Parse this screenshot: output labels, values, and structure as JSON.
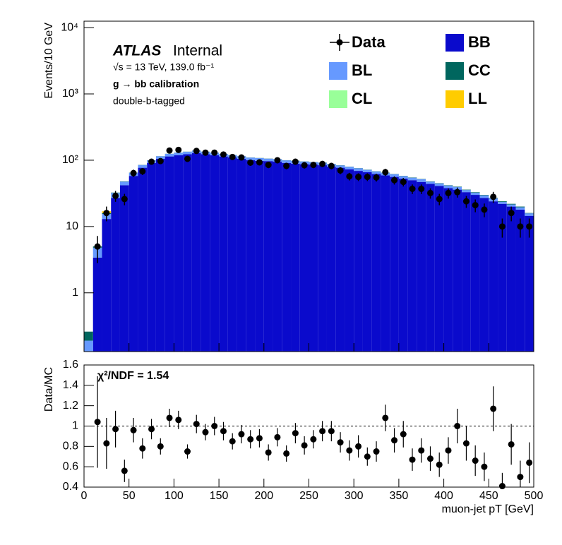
{
  "chart_data": [
    {
      "type": "histogram",
      "annotations": [
        "ATLAS",
        "Internal",
        "√s = 13 TeV, 139.0 fb⁻¹",
        "g → bb calibration",
        "double-b-tagged"
      ],
      "y_label": "Events/10 GeV",
      "log_scale": true,
      "xlim": [
        0,
        500
      ],
      "ylim": [
        0.13,
        12500
      ],
      "yticks": [
        1,
        10,
        {
          "value": 100,
          "label": "10²"
        },
        {
          "value": 1000,
          "label": "10³"
        },
        {
          "value": 10000,
          "label": "10⁴"
        }
      ],
      "bins": [
        0,
        10,
        20,
        30,
        40,
        50,
        60,
        70,
        80,
        90,
        100,
        110,
        120,
        130,
        140,
        150,
        160,
        170,
        180,
        190,
        200,
        210,
        220,
        230,
        240,
        250,
        260,
        270,
        280,
        290,
        300,
        310,
        320,
        330,
        340,
        350,
        360,
        370,
        380,
        390,
        400,
        410,
        420,
        430,
        440,
        450,
        460,
        470,
        480,
        490,
        500
      ],
      "series": [
        {
          "name": "BB",
          "color": "#0a0acc",
          "values": [
            0.01,
            3.4,
            13,
            27,
            42,
            58,
            77,
            91,
            105,
            114,
            119,
            123,
            128,
            123,
            119,
            114,
            110,
            105,
            100,
            98,
            97,
            95,
            91,
            89,
            87,
            86,
            84,
            80,
            77,
            73,
            69,
            66,
            62,
            59,
            56,
            53,
            50,
            47,
            44,
            41,
            38,
            36,
            33,
            30,
            27,
            24,
            22,
            20,
            18,
            14.5
          ]
        },
        {
          "name": "BL",
          "color": "#6699ff",
          "values": [
            0.18,
            1.4,
            2.5,
            5,
            5.5,
            6.5,
            7.5,
            8.5,
            9.5,
            10.5,
            10.5,
            11,
            11.5,
            11,
            10.5,
            10,
            9.5,
            9.5,
            9.5,
            9.5,
            8.5,
            8.5,
            8.5,
            8.5,
            8.5,
            7.5,
            7.5,
            7.5,
            6.5,
            6.5,
            6.5,
            5.5,
            5.5,
            5.5,
            5.5,
            4.5,
            4.5,
            4.5,
            3.5,
            3.5,
            3.5,
            3.5,
            2.5,
            2.5,
            2.5,
            2.5,
            1.5,
            1.5,
            1.5,
            1.3
          ]
        },
        {
          "name": "CC",
          "color": "#00665e",
          "values": [
            0.07,
            0.2,
            0.5,
            0.5,
            0.5,
            0.5,
            0.5,
            0.5,
            0.5,
            0.5,
            0.5,
            0.5,
            0.5,
            0.5,
            0.5,
            0.5,
            0.5,
            0.5,
            0.5,
            0.5,
            0.5,
            0.5,
            0.5,
            0.5,
            0.5,
            0.5,
            0.5,
            0.5,
            0.5,
            0.5,
            0.5,
            0.5,
            0.5,
            0.5,
            0.5,
            0.5,
            0.5,
            0.5,
            0.5,
            0.5,
            0.5,
            0.5,
            0.5,
            0.5,
            0.5,
            0.5,
            0.5,
            0.5,
            0.5,
            0.2
          ]
        },
        {
          "name": "CL",
          "color": "#99ff99",
          "values": [
            0,
            0,
            0,
            0,
            0,
            0,
            0,
            0,
            0,
            0,
            0,
            0,
            0,
            0,
            0,
            0,
            0,
            0,
            0,
            0,
            0,
            0,
            0,
            0,
            0,
            0,
            0,
            0,
            0,
            0,
            0,
            0,
            0,
            0,
            0,
            0,
            0,
            0,
            0,
            0,
            0,
            0,
            0,
            0,
            0,
            0,
            0,
            0,
            0,
            0
          ]
        },
        {
          "name": "LL",
          "color": "#ffcc00",
          "values": [
            0,
            0,
            1,
            0,
            0,
            0,
            0,
            0,
            0,
            0,
            0,
            0,
            0,
            0,
            0,
            0,
            0,
            0,
            0,
            0,
            0,
            0,
            0,
            0,
            0,
            0,
            0,
            0,
            0,
            0,
            0,
            0,
            0,
            0,
            0,
            0,
            0,
            0,
            0,
            0,
            0,
            0,
            0,
            0,
            0,
            0,
            0,
            0,
            0,
            0
          ]
        }
      ],
      "data": {
        "name": "Data",
        "color": "#000000",
        "values": [
          null,
          5,
          16,
          29,
          26,
          64,
          68,
          95,
          97,
          140,
          143,
          105,
          138,
          130,
          130,
          122,
          112,
          110,
          92,
          93,
          85,
          100,
          82,
          95,
          84,
          85,
          88,
          82,
          70,
          57,
          56,
          56,
          55,
          66,
          50,
          47,
          37,
          37,
          32,
          26,
          32,
          33,
          24,
          21,
          18,
          28,
          10,
          16,
          10,
          10
        ],
        "errors": [
          null,
          2.2,
          4,
          5.4,
          5.1,
          8,
          8.2,
          9.7,
          9.8,
          11.8,
          12,
          10.2,
          11.7,
          11.4,
          11.4,
          11,
          10.6,
          10.5,
          9.6,
          9.6,
          9.2,
          10,
          9.1,
          9.7,
          9.2,
          9.2,
          9.4,
          9.1,
          8.4,
          7.5,
          7.5,
          7.5,
          7.4,
          8.1,
          7.1,
          6.9,
          6.1,
          6.1,
          5.7,
          5.1,
          5.7,
          5.7,
          4.9,
          4.6,
          4.2,
          5.3,
          3.2,
          4,
          3.2,
          3.2
        ]
      }
    },
    {
      "type": "scatter",
      "annotation": "χ²/NDF = 1.54",
      "x_label": "muon-jet pT [GeV]",
      "y_label": "Data/MC",
      "xlim": [
        0,
        500
      ],
      "ylim": [
        0.4,
        1.6
      ],
      "xticks": [
        0,
        50,
        100,
        150,
        200,
        250,
        300,
        350,
        400,
        450,
        500
      ],
      "yticks": [
        0.4,
        0.6,
        0.8,
        1,
        1.2,
        1.4,
        1.6
      ],
      "bins": [
        0,
        10,
        20,
        30,
        40,
        50,
        60,
        70,
        80,
        90,
        100,
        110,
        120,
        130,
        140,
        150,
        160,
        170,
        180,
        190,
        200,
        210,
        220,
        230,
        240,
        250,
        260,
        270,
        280,
        290,
        300,
        310,
        320,
        330,
        340,
        350,
        360,
        370,
        380,
        390,
        400,
        410,
        420,
        430,
        440,
        450,
        460,
        470,
        480,
        490,
        500
      ],
      "color": "#000000",
      "values": [
        null,
        1.04,
        0.83,
        0.97,
        0.56,
        0.96,
        0.78,
        0.97,
        0.8,
        1.08,
        1.06,
        0.75,
        1.02,
        0.94,
        1,
        0.95,
        0.85,
        0.92,
        0.87,
        0.88,
        0.74,
        0.89,
        0.73,
        0.93,
        0.81,
        0.87,
        0.95,
        0.95,
        0.84,
        0.76,
        0.8,
        0.7,
        0.75,
        1.08,
        0.86,
        0.92,
        0.67,
        0.76,
        0.68,
        0.62,
        0.76,
        1,
        0.83,
        0.66,
        0.6,
        1.17,
        0.41,
        0.82,
        0.5,
        0.64
      ],
      "errors": [
        null,
        0.45,
        0.25,
        0.18,
        0.11,
        0.12,
        0.1,
        0.1,
        0.08,
        0.09,
        0.09,
        0.07,
        0.09,
        0.08,
        0.09,
        0.09,
        0.08,
        0.09,
        0.09,
        0.09,
        0.08,
        0.09,
        0.08,
        0.1,
        0.09,
        0.09,
        0.1,
        0.1,
        0.1,
        0.1,
        0.11,
        0.09,
        0.1,
        0.13,
        0.12,
        0.13,
        0.11,
        0.12,
        0.12,
        0.12,
        0.13,
        0.17,
        0.17,
        0.15,
        0.14,
        0.22,
        0.13,
        0.2,
        0.16,
        0.2
      ]
    }
  ]
}
